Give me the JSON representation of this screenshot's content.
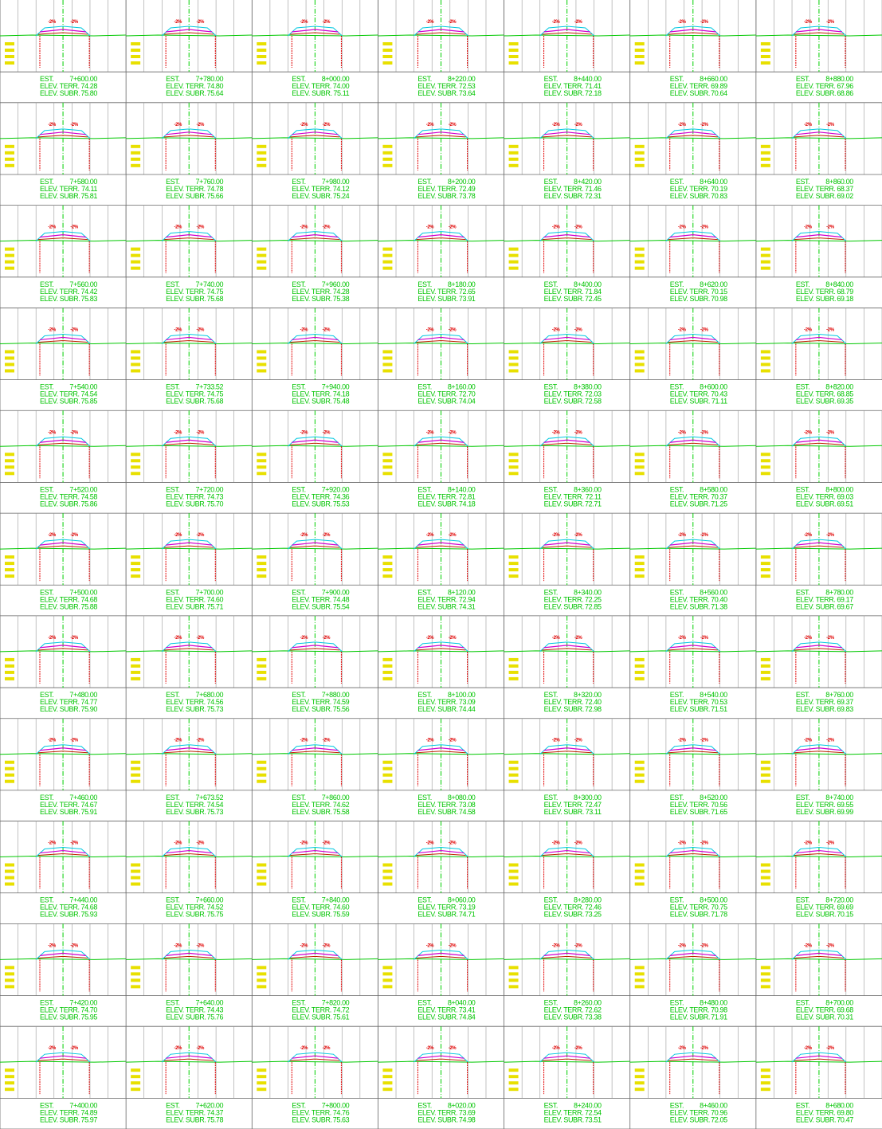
{
  "labels": {
    "station": "EST.",
    "terrain": "ELEV. TERR.",
    "subgrade": "ELEV. SUBR.",
    "slope": "-2%"
  },
  "sections": [
    [
      {
        "station": "7+600.00",
        "terrain": "74.28",
        "subgrade": "75.80"
      },
      {
        "station": "7+580.00",
        "terrain": "74.11",
        "subgrade": "75.81"
      },
      {
        "station": "7+560.00",
        "terrain": "74.42",
        "subgrade": "75.83"
      },
      {
        "station": "7+540.00",
        "terrain": "74.54",
        "subgrade": "75.85"
      },
      {
        "station": "7+520.00",
        "terrain": "74.58",
        "subgrade": "75.86"
      },
      {
        "station": "7+500.00",
        "terrain": "74.68",
        "subgrade": "75.88"
      },
      {
        "station": "7+480.00",
        "terrain": "74.77",
        "subgrade": "75.90"
      },
      {
        "station": "7+460.00",
        "terrain": "74.67",
        "subgrade": "75.91"
      },
      {
        "station": "7+440.00",
        "terrain": "74.68",
        "subgrade": "75.93"
      },
      {
        "station": "7+420.00",
        "terrain": "74.70",
        "subgrade": "75.95"
      },
      {
        "station": "7+400.00",
        "terrain": "74.89",
        "subgrade": "75.97"
      }
    ],
    [
      {
        "station": "7+780.00",
        "terrain": "74.80",
        "subgrade": "75.64"
      },
      {
        "station": "7+760.00",
        "terrain": "74.78",
        "subgrade": "75.66"
      },
      {
        "station": "7+740.00",
        "terrain": "74.75",
        "subgrade": "75.68"
      },
      {
        "station": "7+733.52",
        "terrain": "74.75",
        "subgrade": "75.68"
      },
      {
        "station": "7+720.00",
        "terrain": "74.73",
        "subgrade": "75.70"
      },
      {
        "station": "7+700.00",
        "terrain": "74.60",
        "subgrade": "75.71"
      },
      {
        "station": "7+680.00",
        "terrain": "74.56",
        "subgrade": "75.73"
      },
      {
        "station": "7+673.52",
        "terrain": "74.54",
        "subgrade": "75.73"
      },
      {
        "station": "7+660.00",
        "terrain": "74.52",
        "subgrade": "75.75"
      },
      {
        "station": "7+640.00",
        "terrain": "74.43",
        "subgrade": "75.76"
      },
      {
        "station": "7+620.00",
        "terrain": "74.37",
        "subgrade": "75.78"
      }
    ],
    [
      {
        "station": "8+000.00",
        "terrain": "74.00",
        "subgrade": "75.11"
      },
      {
        "station": "7+980.00",
        "terrain": "74.12",
        "subgrade": "75.24"
      },
      {
        "station": "7+960.00",
        "terrain": "74.28",
        "subgrade": "75.38"
      },
      {
        "station": "7+940.00",
        "terrain": "74.18",
        "subgrade": "75.48"
      },
      {
        "station": "7+920.00",
        "terrain": "74.36",
        "subgrade": "75.53"
      },
      {
        "station": "7+900.00",
        "terrain": "74.48",
        "subgrade": "75.54"
      },
      {
        "station": "7+880.00",
        "terrain": "74.59",
        "subgrade": "75.56"
      },
      {
        "station": "7+860.00",
        "terrain": "74.62",
        "subgrade": "75.58"
      },
      {
        "station": "7+840.00",
        "terrain": "74.60",
        "subgrade": "75.59"
      },
      {
        "station": "7+820.00",
        "terrain": "74.72",
        "subgrade": "75.61"
      },
      {
        "station": "7+800.00",
        "terrain": "74.76",
        "subgrade": "75.63"
      }
    ],
    [
      {
        "station": "8+220.00",
        "terrain": "72.53",
        "subgrade": "73.64"
      },
      {
        "station": "8+200.00",
        "terrain": "72.49",
        "subgrade": "73.78"
      },
      {
        "station": "8+180.00",
        "terrain": "72.65",
        "subgrade": "73.91"
      },
      {
        "station": "8+160.00",
        "terrain": "72.70",
        "subgrade": "74.04"
      },
      {
        "station": "8+140.00",
        "terrain": "72.81",
        "subgrade": "74.18"
      },
      {
        "station": "8+120.00",
        "terrain": "72.94",
        "subgrade": "74.31"
      },
      {
        "station": "8+100.00",
        "terrain": "73.09",
        "subgrade": "74.44"
      },
      {
        "station": "8+080.00",
        "terrain": "73.08",
        "subgrade": "74.58"
      },
      {
        "station": "8+060.00",
        "terrain": "73.19",
        "subgrade": "74.71"
      },
      {
        "station": "8+040.00",
        "terrain": "73.41",
        "subgrade": "74.84"
      },
      {
        "station": "8+020.00",
        "terrain": "73.69",
        "subgrade": "74.98"
      }
    ],
    [
      {
        "station": "8+440.00",
        "terrain": "71.41",
        "subgrade": "72.18"
      },
      {
        "station": "8+420.00",
        "terrain": "71.46",
        "subgrade": "72.31"
      },
      {
        "station": "8+400.00",
        "terrain": "71.84",
        "subgrade": "72.45"
      },
      {
        "station": "8+380.00",
        "terrain": "72.03",
        "subgrade": "72.58"
      },
      {
        "station": "8+360.00",
        "terrain": "72.11",
        "subgrade": "72.71"
      },
      {
        "station": "8+340.00",
        "terrain": "72.25",
        "subgrade": "72.85"
      },
      {
        "station": "8+320.00",
        "terrain": "72.40",
        "subgrade": "72.98"
      },
      {
        "station": "8+300.00",
        "terrain": "72.47",
        "subgrade": "73.11"
      },
      {
        "station": "8+280.00",
        "terrain": "72.46",
        "subgrade": "73.25"
      },
      {
        "station": "8+260.00",
        "terrain": "72.62",
        "subgrade": "73.38"
      },
      {
        "station": "8+240.00",
        "terrain": "72.54",
        "subgrade": "73.51"
      }
    ],
    [
      {
        "station": "8+660.00",
        "terrain": "69.89",
        "subgrade": "70.64"
      },
      {
        "station": "8+640.00",
        "terrain": "70.19",
        "subgrade": "70.83"
      },
      {
        "station": "8+620.00",
        "terrain": "70.15",
        "subgrade": "70.98"
      },
      {
        "station": "8+600.00",
        "terrain": "70.43",
        "subgrade": "71.11"
      },
      {
        "station": "8+580.00",
        "terrain": "70.37",
        "subgrade": "71.25"
      },
      {
        "station": "8+560.00",
        "terrain": "70.40",
        "subgrade": "71.38"
      },
      {
        "station": "8+540.00",
        "terrain": "70.53",
        "subgrade": "71.51"
      },
      {
        "station": "8+520.00",
        "terrain": "70.56",
        "subgrade": "71.65"
      },
      {
        "station": "8+500.00",
        "terrain": "70.75",
        "subgrade": "71.78"
      },
      {
        "station": "8+480.00",
        "terrain": "70.98",
        "subgrade": "71.91"
      },
      {
        "station": "8+460.00",
        "terrain": "70.96",
        "subgrade": "72.05"
      }
    ],
    [
      {
        "station": "8+880.00",
        "terrain": "67.96",
        "subgrade": "68.86"
      },
      {
        "station": "8+860.00",
        "terrain": "68.37",
        "subgrade": "69.02"
      },
      {
        "station": "8+840.00",
        "terrain": "68.79",
        "subgrade": "69.18"
      },
      {
        "station": "8+820.00",
        "terrain": "68.85",
        "subgrade": "69.35"
      },
      {
        "station": "8+800.00",
        "terrain": "69.03",
        "subgrade": "69.51"
      },
      {
        "station": "8+780.00",
        "terrain": "69.17",
        "subgrade": "69.67"
      },
      {
        "station": "8+760.00",
        "terrain": "69.37",
        "subgrade": "69.83"
      },
      {
        "station": "8+740.00",
        "terrain": "69.55",
        "subgrade": "69.99"
      },
      {
        "station": "8+720.00",
        "terrain": "69.69",
        "subgrade": "70.15"
      },
      {
        "station": "8+700.00",
        "terrain": "69.68",
        "subgrade": "70.31"
      },
      {
        "station": "8+680.00",
        "terrain": "69.80",
        "subgrade": "70.47"
      }
    ]
  ]
}
